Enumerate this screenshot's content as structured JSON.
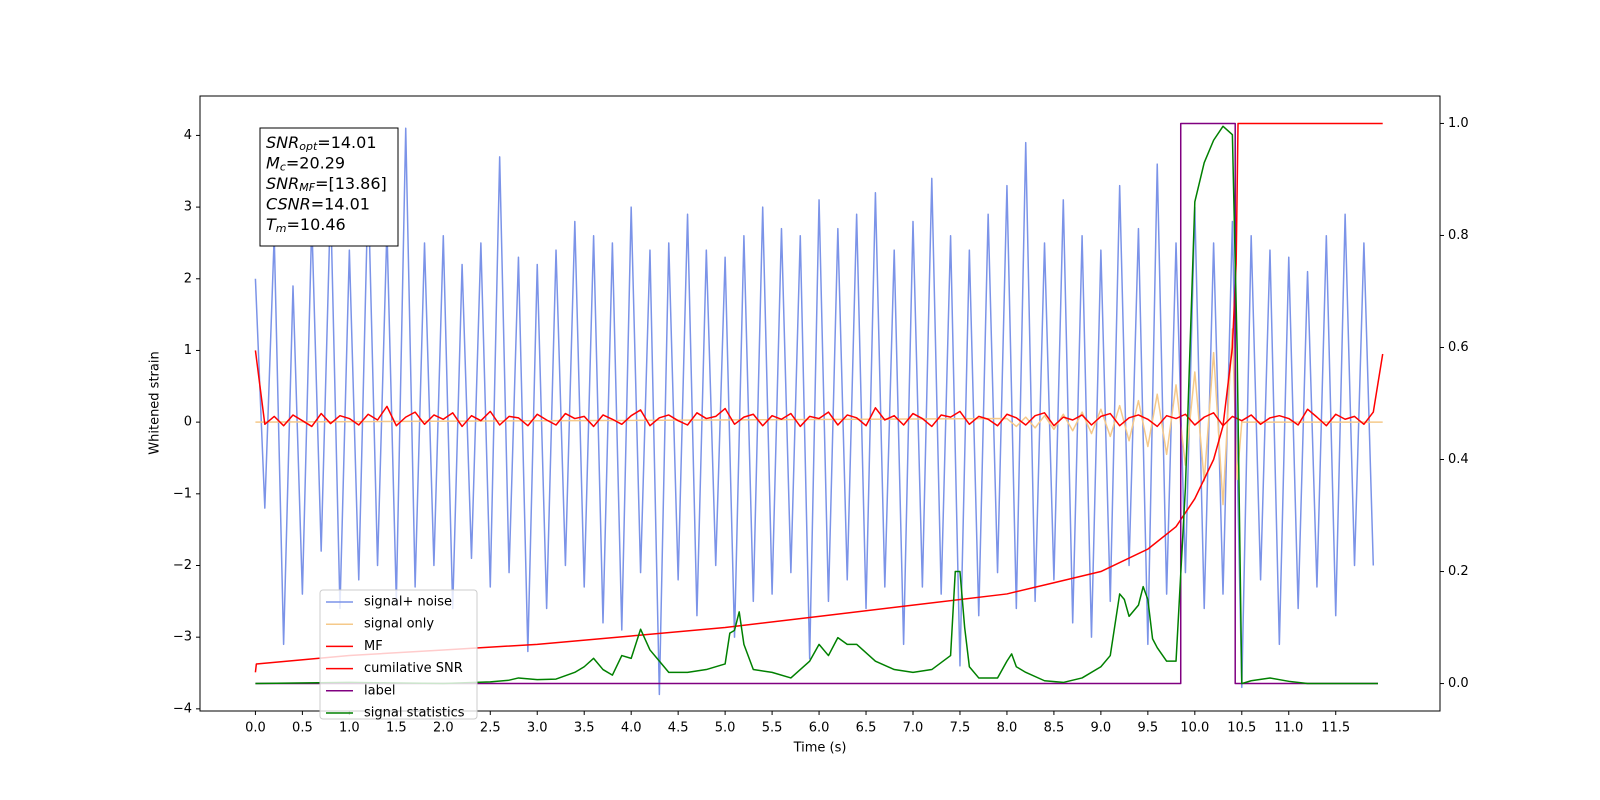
{
  "chart_data": {
    "type": "line",
    "x_label": "Time (s)",
    "y_label": "Whitened strain",
    "xlim": [
      -0.59,
      12.61
    ],
    "ylim": [
      -4.03,
      4.55
    ],
    "y2lim": [
      -0.049,
      1.049
    ],
    "xticks": [
      {
        "value": 0,
        "label": "0.0"
      },
      0.5,
      {
        "value": 1,
        "label": "1.0"
      },
      1.5,
      {
        "value": 2,
        "label": "2.0"
      },
      2.5,
      {
        "value": 3,
        "label": "3.0"
      },
      3.5,
      {
        "value": 4,
        "label": "4.0"
      },
      4.5,
      {
        "value": 5,
        "label": "5.0"
      },
      5.5,
      {
        "value": 6,
        "label": "6.0"
      },
      6.5,
      {
        "value": 7,
        "label": "7.0"
      },
      7.5,
      {
        "value": 8,
        "label": "8.0"
      },
      8.5,
      {
        "value": 9,
        "label": "9.0"
      },
      9.5,
      {
        "value": 10,
        "label": "10.0"
      },
      10.5,
      {
        "value": 11,
        "label": "11.0"
      },
      11.5
    ],
    "yticks": [
      {
        "value": -4,
        "label": "−4"
      },
      {
        "value": -3,
        "label": "−3"
      },
      {
        "value": -2,
        "label": "−2"
      },
      {
        "value": -1,
        "label": "−1"
      },
      0,
      1,
      2,
      3,
      4
    ],
    "y2ticks": [
      {
        "value": 0,
        "label": "0.0"
      },
      0.2,
      0.4,
      0.6,
      0.8,
      {
        "value": 1,
        "label": "1.0"
      }
    ],
    "legend": "lower left",
    "annotations": [
      {
        "main": "SNR",
        "sub": "opt",
        "rest": "=14.01"
      },
      {
        "main": "M",
        "sub": "c",
        "rest": "=20.29"
      },
      {
        "main": "SNR",
        "sub": "MF",
        "rest": "=[13.86]"
      },
      {
        "main": "CSNR",
        "rest": "=14.01"
      },
      {
        "main": "T",
        "sub": "m",
        "rest": "=10.46"
      }
    ],
    "series": [
      {
        "name": "signal+ noise",
        "color": "#7b93e8",
        "axis": "y",
        "x": [
          0.0,
          0.1,
          0.2,
          0.3,
          0.4,
          0.5,
          0.6,
          0.7,
          0.8,
          0.9,
          1.0,
          1.1,
          1.2,
          1.3,
          1.4,
          1.5,
          1.6,
          1.7,
          1.8,
          1.9,
          2.0,
          2.1,
          2.2,
          2.3,
          2.4,
          2.5,
          2.6,
          2.7,
          2.8,
          2.9,
          3.0,
          3.1,
          3.2,
          3.3,
          3.4,
          3.5,
          3.6,
          3.7,
          3.8,
          3.9,
          4.0,
          4.1,
          4.2,
          4.3,
          4.4,
          4.5,
          4.6,
          4.7,
          4.8,
          4.9,
          5.0,
          5.1,
          5.2,
          5.3,
          5.4,
          5.5,
          5.6,
          5.7,
          5.8,
          5.9,
          6.0,
          6.1,
          6.2,
          6.3,
          6.4,
          6.5,
          6.6,
          6.7,
          6.8,
          6.9,
          7.0,
          7.1,
          7.2,
          7.3,
          7.4,
          7.5,
          7.6,
          7.7,
          7.8,
          7.9,
          8.0,
          8.1,
          8.2,
          8.3,
          8.4,
          8.5,
          8.6,
          8.7,
          8.8,
          8.9,
          9.0,
          9.1,
          9.2,
          9.3,
          9.4,
          9.5,
          9.6,
          9.7,
          9.8,
          9.9,
          10.0,
          10.1,
          10.2,
          10.3,
          10.4,
          10.5,
          10.6,
          10.7,
          10.8,
          10.9,
          11.0,
          11.1,
          11.2,
          11.3,
          11.4,
          11.5,
          11.6,
          11.7,
          11.8,
          11.9
        ],
        "values": [
          2.0,
          -1.2,
          2.6,
          -3.1,
          1.9,
          -2.4,
          2.8,
          -1.8,
          3.1,
          -2.6,
          2.4,
          -2.2,
          3.3,
          -2.0,
          2.7,
          -2.5,
          4.1,
          -2.3,
          2.5,
          -2.0,
          2.6,
          -2.6,
          2.2,
          -1.9,
          2.5,
          -2.3,
          3.7,
          -2.1,
          2.3,
          -3.2,
          2.2,
          -2.6,
          2.4,
          -2.0,
          2.8,
          -2.3,
          2.6,
          -2.8,
          2.5,
          -2.9,
          3.0,
          -2.1,
          2.4,
          -3.8,
          2.5,
          -2.2,
          2.9,
          -2.7,
          2.4,
          -2.0,
          2.3,
          -3.0,
          2.6,
          -2.5,
          3.0,
          -2.4,
          2.7,
          -2.1,
          2.6,
          -3.3,
          3.1,
          -2.5,
          2.7,
          -2.2,
          2.9,
          -2.6,
          3.2,
          -2.3,
          2.4,
          -3.1,
          2.8,
          -2.3,
          3.4,
          -2.4,
          2.6,
          -3.4,
          2.4,
          -2.7,
          2.9,
          -2.1,
          3.3,
          -2.6,
          3.9,
          -2.5,
          2.5,
          -2.2,
          3.1,
          -2.8,
          2.6,
          -3.0,
          2.4,
          -2.5,
          3.3,
          -2.0,
          2.7,
          -3.1,
          3.6,
          -2.4,
          2.5,
          -2.1,
          3.0,
          -2.6,
          2.5,
          -2.4,
          2.8,
          -3.7,
          2.6,
          -2.2,
          2.4,
          -3.1,
          2.3,
          -2.6,
          2.1,
          -2.3,
          2.6,
          -2.7,
          2.9,
          -2.0,
          2.5,
          -2.0
        ]
      },
      {
        "name": "signal only",
        "color": "#f5c98a",
        "axis": "y",
        "x": [
          0,
          8.0,
          8.1,
          8.2,
          8.3,
          8.4,
          8.5,
          8.6,
          8.7,
          8.8,
          8.9,
          9.0,
          9.1,
          9.2,
          9.3,
          9.4,
          9.5,
          9.6,
          9.7,
          9.8,
          9.9,
          10.0,
          10.1,
          10.2,
          10.3,
          10.4,
          10.45,
          10.5,
          12
        ],
        "values": [
          0,
          0.05,
          -0.06,
          0.07,
          -0.08,
          0.09,
          -0.1,
          0.11,
          -0.12,
          0.14,
          -0.16,
          0.18,
          -0.2,
          0.23,
          -0.26,
          0.3,
          -0.34,
          0.39,
          -0.45,
          0.52,
          -0.6,
          0.7,
          -0.82,
          0.97,
          -1.15,
          1.3,
          -0.8,
          0,
          0
        ]
      },
      {
        "name": "MF",
        "color": "#ff0000",
        "axis": "y",
        "x": [
          0.0,
          0.1,
          0.2,
          0.3,
          0.4,
          0.5,
          0.6,
          0.7,
          0.8,
          0.9,
          1.0,
          1.1,
          1.2,
          1.3,
          1.4,
          1.5,
          1.6,
          1.7,
          1.8,
          1.9,
          2.0,
          2.1,
          2.2,
          2.3,
          2.4,
          2.5,
          2.6,
          2.7,
          2.8,
          2.9,
          3.0,
          3.1,
          3.2,
          3.3,
          3.4,
          3.5,
          3.6,
          3.7,
          3.8,
          3.9,
          4.0,
          4.1,
          4.2,
          4.3,
          4.4,
          4.5,
          4.6,
          4.7,
          4.8,
          4.9,
          5.0,
          5.1,
          5.2,
          5.3,
          5.4,
          5.5,
          5.6,
          5.7,
          5.8,
          5.9,
          6.0,
          6.1,
          6.2,
          6.3,
          6.4,
          6.5,
          6.6,
          6.7,
          6.8,
          6.9,
          7.0,
          7.1,
          7.2,
          7.3,
          7.4,
          7.5,
          7.6,
          7.7,
          7.8,
          7.9,
          8.0,
          8.1,
          8.2,
          8.3,
          8.4,
          8.5,
          8.6,
          8.7,
          8.8,
          8.9,
          9.0,
          9.1,
          9.2,
          9.3,
          9.4,
          9.5,
          9.6,
          9.7,
          9.8,
          9.9,
          10.0,
          10.1,
          10.2,
          10.3,
          10.4,
          10.5,
          10.6,
          10.7,
          10.8,
          10.9,
          11.0,
          11.1,
          11.2,
          11.3,
          11.4,
          11.5,
          11.6,
          11.7,
          11.8,
          11.9,
          12.0
        ],
        "values": [
          1.0,
          -0.03,
          0.08,
          -0.05,
          0.1,
          0.02,
          -0.06,
          0.12,
          -0.02,
          0.09,
          0.05,
          -0.04,
          0.11,
          0.03,
          0.22,
          -0.05,
          0.07,
          0.14,
          -0.03,
          0.1,
          0.04,
          0.13,
          -0.06,
          0.09,
          0.02,
          0.15,
          -0.04,
          0.08,
          0.06,
          -0.05,
          0.11,
          0.03,
          -0.04,
          0.12,
          0.05,
          0.08,
          -0.06,
          0.1,
          0.04,
          -0.03,
          0.09,
          0.17,
          -0.05,
          0.06,
          0.1,
          0.02,
          -0.04,
          0.13,
          0.05,
          0.08,
          0.19,
          -0.03,
          0.07,
          0.11,
          -0.05,
          0.09,
          0.04,
          0.12,
          -0.06,
          0.08,
          0.05,
          0.14,
          -0.04,
          0.1,
          0.06,
          -0.05,
          0.2,
          0.03,
          0.09,
          -0.04,
          0.12,
          0.05,
          -0.06,
          0.1,
          0.07,
          0.15,
          -0.03,
          0.08,
          0.04,
          -0.05,
          0.11,
          0.06,
          -0.04,
          0.09,
          0.13,
          -0.05,
          0.07,
          0.03,
          0.1,
          -0.04,
          0.08,
          0.12,
          -0.05,
          0.06,
          0.1,
          0.04,
          -0.06,
          0.09,
          0.05,
          0.11,
          -0.04,
          0.07,
          0.13,
          -0.05,
          0.08,
          0.02,
          0.1,
          -0.03,
          0.06,
          0.09,
          0.05,
          -0.04,
          0.18,
          0.07,
          -0.05,
          0.11,
          0.04,
          0.08,
          -0.03,
          0.14,
          0.95
        ]
      },
      {
        "name": "cumilative SNR",
        "color": "#ff0000",
        "axis": "y2",
        "x": [
          0,
          0.01,
          1,
          2,
          3,
          4,
          5,
          6,
          7,
          8,
          8.5,
          9,
          9.5,
          9.8,
          10,
          10.2,
          10.3,
          10.4,
          10.44,
          10.46,
          12
        ],
        "values": [
          0.02,
          0.035,
          0.05,
          0.06,
          0.07,
          0.085,
          0.1,
          0.12,
          0.14,
          0.16,
          0.18,
          0.2,
          0.24,
          0.28,
          0.33,
          0.4,
          0.46,
          0.6,
          0.75,
          1.0,
          1.0
        ]
      },
      {
        "name": "label",
        "color": "#800080",
        "axis": "y2",
        "x": [
          0,
          9.85,
          9.85,
          10.43,
          10.43,
          11.95
        ],
        "values": [
          0,
          0,
          1,
          1,
          0,
          0
        ]
      },
      {
        "name": "signal statistics",
        "color": "#008000",
        "axis": "y2",
        "x": [
          0,
          1,
          2,
          2.5,
          2.7,
          2.8,
          3.0,
          3.2,
          3.4,
          3.5,
          3.6,
          3.7,
          3.8,
          3.9,
          4.0,
          4.1,
          4.2,
          4.3,
          4.4,
          4.6,
          4.8,
          5.0,
          5.05,
          5.1,
          5.15,
          5.2,
          5.3,
          5.5,
          5.7,
          5.9,
          6.0,
          6.1,
          6.2,
          6.3,
          6.4,
          6.6,
          6.8,
          7.0,
          7.2,
          7.4,
          7.45,
          7.5,
          7.55,
          7.6,
          7.7,
          7.9,
          8.0,
          8.05,
          8.1,
          8.2,
          8.4,
          8.6,
          8.8,
          9.0,
          9.1,
          9.2,
          9.25,
          9.3,
          9.4,
          9.45,
          9.5,
          9.55,
          9.6,
          9.7,
          9.8,
          9.9,
          10.0,
          10.1,
          10.2,
          10.3,
          10.4,
          10.45,
          10.5,
          10.6,
          10.8,
          11.0,
          11.2,
          11.5,
          11.95
        ],
        "values": [
          0,
          0.002,
          0,
          0.003,
          0.006,
          0.01,
          0.007,
          0.008,
          0.02,
          0.03,
          0.045,
          0.025,
          0.015,
          0.05,
          0.045,
          0.097,
          0.06,
          0.04,
          0.02,
          0.02,
          0.025,
          0.035,
          0.09,
          0.095,
          0.128,
          0.07,
          0.025,
          0.02,
          0.01,
          0.04,
          0.07,
          0.05,
          0.082,
          0.07,
          0.07,
          0.04,
          0.025,
          0.02,
          0.025,
          0.05,
          0.2,
          0.2,
          0.1,
          0.03,
          0.01,
          0.01,
          0.04,
          0.053,
          0.03,
          0.02,
          0.005,
          0.002,
          0.01,
          0.03,
          0.05,
          0.16,
          0.15,
          0.12,
          0.14,
          0.173,
          0.15,
          0.08,
          0.064,
          0.04,
          0.04,
          0.35,
          0.86,
          0.93,
          0.97,
          0.995,
          0.98,
          0.6,
          0,
          0.005,
          0.01,
          0.004,
          0,
          0,
          0
        ]
      }
    ]
  }
}
